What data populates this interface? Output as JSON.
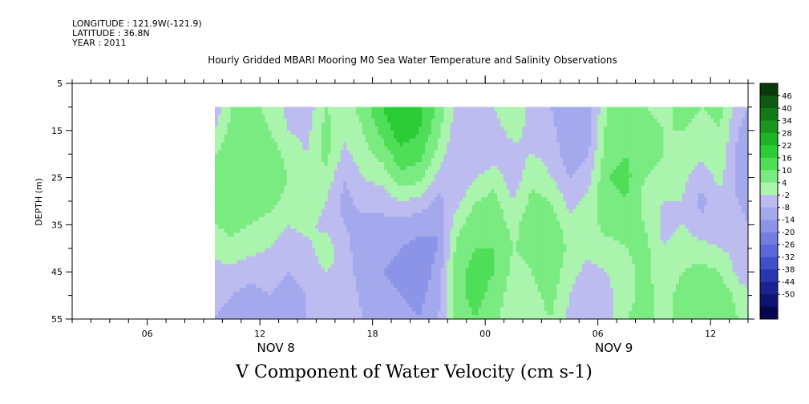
{
  "header": {
    "longitude": "LONGITUDE : 121.9W(-121.9)",
    "latitude": "LATITUDE : 36.8N",
    "year": "YEAR : 2011"
  },
  "chart_data": {
    "type": "heatmap",
    "title": "Hourly Gridded MBARI Mooring M0 Sea Water Temperature and Salinity Observations",
    "variable_label": "V Component of Water Velocity (cm s-1)",
    "ylabel": "DEPTH (m)",
    "y_ticks": [
      "5",
      "15",
      "25",
      "35",
      "45",
      "55"
    ],
    "ylim": [
      5,
      55
    ],
    "y_reversed": true,
    "x_hours_range": [
      2,
      38
    ],
    "x_ticks": [
      {
        "hour": 6,
        "label": "06"
      },
      {
        "hour": 12,
        "label": "12"
      },
      {
        "hour": 18,
        "label": "18"
      },
      {
        "hour": 24,
        "label": "00"
      },
      {
        "hour": 30,
        "label": "06"
      },
      {
        "hour": 36,
        "label": "12"
      }
    ],
    "day_labels": [
      {
        "hour": 12,
        "label": "NOV  8"
      },
      {
        "hour": 30,
        "label": "NOV  9"
      }
    ],
    "data_extent": {
      "hour_start": 9.6,
      "hour_end": 38,
      "depth_top": 10,
      "depth_bottom": 55
    },
    "colorbar": {
      "labels": [
        "46",
        "40",
        "34",
        "28",
        "22",
        "16",
        "10",
        "4",
        "-2",
        "-8",
        "-14",
        "-20",
        "-26",
        "-32",
        "-38",
        "-44",
        "-50"
      ],
      "colors": [
        "#0a3a0a",
        "#0f5a12",
        "#137a18",
        "#18961e",
        "#1fb327",
        "#2bcc36",
        "#4fde58",
        "#7aeb80",
        "#aaf4ae",
        "#bcbcf0",
        "#a4a8ec",
        "#8c94e8",
        "#717ee0",
        "#5a68d8",
        "#4050c8",
        "#2a38b0",
        "#1a2490",
        "#0c1470",
        "#050850"
      ]
    },
    "columns": [
      {
        "hour": 9.6,
        "values": [
          -6,
          -2,
          4,
          6,
          6,
          4,
          0,
          -4,
          -6,
          -8
        ]
      },
      {
        "hour": 10.5,
        "values": [
          4,
          6,
          8,
          10,
          8,
          6,
          2,
          -4,
          -8,
          -10
        ]
      },
      {
        "hour": 11.5,
        "values": [
          6,
          8,
          10,
          10,
          8,
          4,
          0,
          -6,
          -10,
          -12
        ]
      },
      {
        "hour": 12.5,
        "values": [
          2,
          4,
          8,
          8,
          6,
          2,
          -2,
          -6,
          -8,
          -10
        ]
      },
      {
        "hour": 13.5,
        "values": [
          -4,
          -2,
          2,
          4,
          2,
          -2,
          -6,
          -8,
          -10,
          -10
        ]
      },
      {
        "hour": 14.5,
        "values": [
          -6,
          -4,
          -2,
          2,
          4,
          0,
          -4,
          -6,
          -8,
          -8
        ]
      },
      {
        "hour": 15.5,
        "values": [
          4,
          6,
          6,
          2,
          -2,
          -4,
          2,
          -2,
          -6,
          -8
        ]
      },
      {
        "hour": 16.5,
        "values": [
          2,
          0,
          -4,
          -8,
          -10,
          -8,
          -6,
          -4,
          -2,
          -2
        ]
      },
      {
        "hour": 17.5,
        "values": [
          6,
          4,
          2,
          -2,
          -6,
          -10,
          -12,
          -12,
          -10,
          -8
        ]
      },
      {
        "hour": 18.5,
        "values": [
          16,
          12,
          6,
          0,
          -6,
          -10,
          -12,
          -14,
          -12,
          -10
        ]
      },
      {
        "hour": 19.5,
        "values": [
          22,
          20,
          14,
          8,
          -2,
          -10,
          -14,
          -16,
          -14,
          -12
        ]
      },
      {
        "hour": 20.5,
        "values": [
          18,
          16,
          12,
          6,
          -4,
          -12,
          -16,
          -18,
          -16,
          -14
        ]
      },
      {
        "hour": 21.5,
        "values": [
          8,
          6,
          2,
          -4,
          -10,
          -14,
          -14,
          -12,
          -10,
          -8
        ]
      },
      {
        "hour": 22.5,
        "values": [
          -4,
          -6,
          -8,
          -8,
          -4,
          2,
          6,
          8,
          8,
          6
        ]
      },
      {
        "hour": 23.5,
        "values": [
          -6,
          -8,
          -8,
          -2,
          4,
          8,
          10,
          12,
          12,
          10
        ]
      },
      {
        "hour": 24.5,
        "values": [
          -2,
          -4,
          -6,
          2,
          6,
          8,
          10,
          10,
          8,
          6
        ]
      },
      {
        "hour": 25.5,
        "values": [
          2,
          0,
          -4,
          -6,
          -2,
          2,
          4,
          2,
          0,
          -2
        ]
      },
      {
        "hour": 26.5,
        "values": [
          -4,
          -4,
          -2,
          2,
          6,
          8,
          6,
          4,
          2,
          2
        ]
      },
      {
        "hour": 27.5,
        "values": [
          -8,
          -6,
          -4,
          -2,
          4,
          8,
          10,
          8,
          6,
          4
        ]
      },
      {
        "hour": 28.5,
        "values": [
          -14,
          -14,
          -12,
          -8,
          -4,
          0,
          2,
          0,
          -2,
          -4
        ]
      },
      {
        "hour": 29.5,
        "values": [
          -10,
          -12,
          -8,
          -4,
          0,
          2,
          0,
          -4,
          -6,
          -4
        ]
      },
      {
        "hour": 30.5,
        "values": [
          4,
          6,
          8,
          10,
          8,
          6,
          2,
          -2,
          -4,
          -6
        ]
      },
      {
        "hour": 31.5,
        "values": [
          6,
          8,
          10,
          12,
          10,
          6,
          4,
          2,
          2,
          4
        ]
      },
      {
        "hour": 32.5,
        "values": [
          4,
          6,
          6,
          4,
          2,
          4,
          6,
          6,
          6,
          6
        ]
      },
      {
        "hour": 33.5,
        "values": [
          2,
          4,
          4,
          2,
          -2,
          -4,
          -2,
          0,
          2,
          2
        ]
      },
      {
        "hour": 34.5,
        "values": [
          6,
          4,
          2,
          0,
          -2,
          -2,
          2,
          4,
          6,
          6
        ]
      },
      {
        "hour": 35.5,
        "values": [
          4,
          2,
          0,
          -6,
          -10,
          -6,
          0,
          6,
          10,
          8
        ]
      },
      {
        "hour": 36.5,
        "values": [
          6,
          4,
          2,
          0,
          -4,
          -6,
          -2,
          4,
          8,
          8
        ]
      },
      {
        "hour": 37.5,
        "values": [
          -6,
          -8,
          -10,
          -10,
          -8,
          -6,
          -4,
          -4,
          2,
          4
        ]
      },
      {
        "hour": 38,
        "values": [
          -8,
          -10,
          -12,
          -12,
          -10,
          -8,
          -6,
          -8,
          0,
          2
        ]
      }
    ]
  }
}
